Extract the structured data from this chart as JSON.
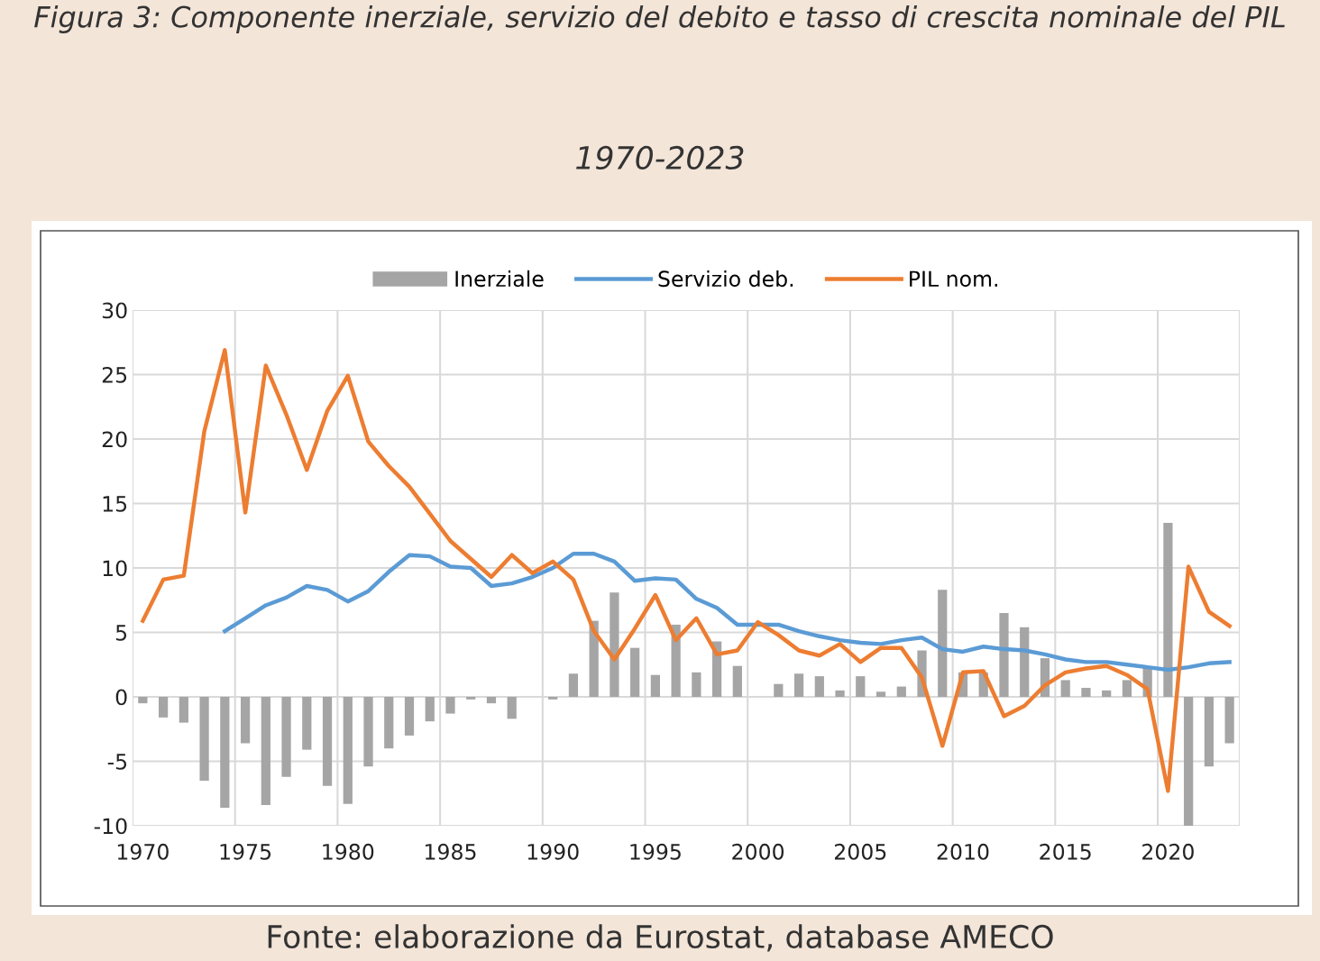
{
  "chart_data": {
    "type": "bar",
    "title": "Figura 3: Componente inerziale, servizio del debito e tasso di crescita nominale del PIL",
    "subtitle": "1970-2023",
    "annotations": [
      "Fonte: elaborazione da Eurostat, database AMECO"
    ],
    "categories": [
      "1970",
      null,
      null,
      null,
      null,
      "1975",
      null,
      null,
      null,
      null,
      "1980",
      null,
      null,
      null,
      null,
      "1985",
      null,
      null,
      null,
      null,
      "1990",
      null,
      null,
      null,
      null,
      "1995",
      null,
      null,
      null,
      null,
      "2000",
      null,
      null,
      null,
      null,
      "2005",
      null,
      null,
      null,
      null,
      "2010",
      null,
      null,
      null,
      null,
      "2015",
      null,
      null,
      null,
      null,
      "2020",
      null,
      null,
      null
    ],
    "series": [
      {
        "name": "Inerziale",
        "color": "#a5a5a5",
        "values": [
          -0.5,
          -1.6,
          -2.0,
          -6.5,
          -8.6,
          -3.6,
          -8.4,
          -6.2,
          -4.1,
          -6.9,
          -8.3,
          -5.4,
          -4.0,
          -3.0,
          -1.9,
          -1.3,
          -0.2,
          -0.5,
          -1.7,
          0,
          -0.2,
          1.8,
          5.9,
          8.1,
          3.8,
          1.7,
          5.6,
          1.9,
          4.3,
          2.4,
          0,
          1.0,
          1.8,
          1.6,
          0.5,
          1.6,
          0.4,
          0.8,
          3.6,
          8.3,
          1.9,
          1.9,
          6.5,
          5.4,
          3.0,
          1.3,
          0.7,
          0.5,
          1.3,
          2.3,
          13.5,
          -10.0,
          -5.4,
          -3.6
        ]
      },
      {
        "name": "Servizio deb.",
        "type": "line",
        "color": "#5b9bd5",
        "values": [
          null,
          null,
          null,
          null,
          5.1,
          6.1,
          7.1,
          7.7,
          8.6,
          8.3,
          7.4,
          8.2,
          9.7,
          11.0,
          10.9,
          10.1,
          10.0,
          8.6,
          8.8,
          9.3,
          10.0,
          11.1,
          11.1,
          10.5,
          9.0,
          9.2,
          9.1,
          7.6,
          6.9,
          5.6,
          5.6,
          5.6,
          5.1,
          4.7,
          4.4,
          4.2,
          4.1,
          4.4,
          4.6,
          3.7,
          3.5,
          3.9,
          3.7,
          3.6,
          3.3,
          2.9,
          2.7,
          2.7,
          2.5,
          2.3,
          2.1,
          2.3,
          2.6,
          2.7
        ]
      },
      {
        "name": "PIL nom.",
        "type": "line",
        "color": "#ed7d31",
        "values": [
          5.9,
          9.1,
          9.4,
          20.6,
          26.9,
          14.3,
          25.7,
          21.9,
          17.6,
          22.2,
          24.9,
          19.8,
          17.9,
          16.3,
          14.2,
          12.1,
          10.7,
          9.3,
          11.0,
          9.6,
          10.5,
          9.1,
          5.1,
          2.9,
          5.3,
          7.9,
          4.4,
          6.1,
          3.3,
          3.6,
          5.8,
          4.8,
          3.6,
          3.2,
          4.1,
          2.7,
          3.8,
          3.8,
          1.5,
          -3.8,
          1.9,
          2.0,
          -1.5,
          -0.7,
          0.9,
          1.9,
          2.2,
          2.4,
          1.7,
          0.6,
          -7.3,
          10.1,
          6.6,
          5.5
        ]
      }
    ],
    "ylim": [
      -10,
      30
    ],
    "yticks": [
      -10,
      -5,
      0,
      5,
      10,
      15,
      20,
      25,
      30
    ],
    "grid": true,
    "legend": "top",
    "marker": "none",
    "line_style": "solid"
  }
}
